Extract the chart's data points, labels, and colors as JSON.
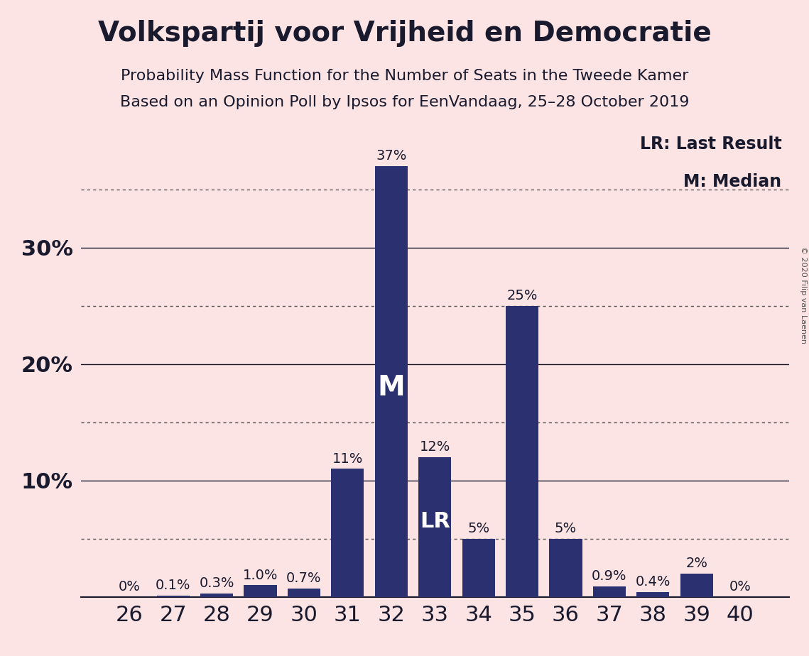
{
  "title": "Volkspartij voor Vrijheid en Democratie",
  "subtitle1": "Probability Mass Function for the Number of Seats in the Tweede Kamer",
  "subtitle2": "Based on an Opinion Poll by Ipsos for EenVandaag, 25–28 October 2019",
  "copyright": "© 2020 Filip van Laenen",
  "legend_lr": "LR: Last Result",
  "legend_m": "M: Median",
  "categories": [
    26,
    27,
    28,
    29,
    30,
    31,
    32,
    33,
    34,
    35,
    36,
    37,
    38,
    39,
    40
  ],
  "values": [
    0.0,
    0.1,
    0.3,
    1.0,
    0.7,
    11.0,
    37.0,
    12.0,
    5.0,
    25.0,
    5.0,
    0.9,
    0.4,
    2.0,
    0.0
  ],
  "labels": [
    "0%",
    "0.1%",
    "0.3%",
    "1.0%",
    "0.7%",
    "11%",
    "37%",
    "12%",
    "5%",
    "25%",
    "5%",
    "0.9%",
    "0.4%",
    "2%",
    "0%"
  ],
  "bar_color": "#2b3170",
  "background_color": "#fce4e4",
  "text_color": "#1a1a2e",
  "ylim": [
    0,
    40
  ],
  "median_bar": 32,
  "lr_bar": 33,
  "title_fontsize": 28,
  "subtitle_fontsize": 16,
  "axis_fontsize": 22,
  "bar_label_fontsize": 14,
  "solid_grid_vals": [
    10,
    20,
    30
  ],
  "dotted_grid_vals": [
    5,
    15,
    25,
    35
  ],
  "ytick_vals": [
    10,
    20,
    30
  ],
  "ytick_labels": [
    "10%",
    "20%",
    "30%"
  ]
}
